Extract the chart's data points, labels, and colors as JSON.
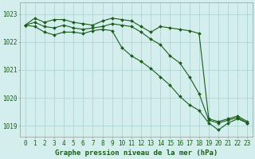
{
  "xlabel": "Graphe pression niveau de la mer (hPa)",
  "bg_color": "#d4eeee",
  "grid_color": "#b0d4d4",
  "line_color": "#1a5c1a",
  "marker_color": "#1a5c1a",
  "hours": [
    0,
    1,
    2,
    3,
    4,
    5,
    6,
    7,
    8,
    9,
    10,
    11,
    12,
    13,
    14,
    15,
    16,
    17,
    18,
    19,
    20,
    21,
    22,
    23
  ],
  "line1": [
    1022.6,
    1022.85,
    1022.7,
    1022.8,
    1022.8,
    1022.7,
    1022.65,
    1022.6,
    1022.75,
    1022.85,
    1022.8,
    1022.75,
    1022.55,
    1022.35,
    1022.55,
    1022.5,
    1022.45,
    1022.4,
    1022.3,
    1019.25,
    1019.15,
    1019.25,
    1019.35,
    1019.15
  ],
  "line2": [
    1022.6,
    1022.7,
    1022.55,
    1022.5,
    1022.6,
    1022.5,
    1022.45,
    1022.5,
    1022.55,
    1022.65,
    1022.6,
    1022.55,
    1022.35,
    1022.1,
    1021.9,
    1021.5,
    1021.25,
    1020.75,
    1020.15,
    1019.2,
    1019.1,
    1019.2,
    1019.3,
    1019.1
  ],
  "line3": [
    1022.6,
    1022.55,
    1022.35,
    1022.25,
    1022.35,
    1022.35,
    1022.3,
    1022.4,
    1022.45,
    1022.4,
    1021.8,
    1021.5,
    1021.3,
    1021.05,
    1020.75,
    1020.45,
    1020.05,
    1019.75,
    1019.55,
    1019.1,
    1018.85,
    1019.1,
    1019.25,
    1019.1
  ],
  "ylim_min": 1018.6,
  "ylim_max": 1023.4,
  "yticks": [
    1019,
    1020,
    1021,
    1022,
    1023
  ],
  "tick_fontsize": 5.5,
  "xlabel_fontsize": 6.5
}
